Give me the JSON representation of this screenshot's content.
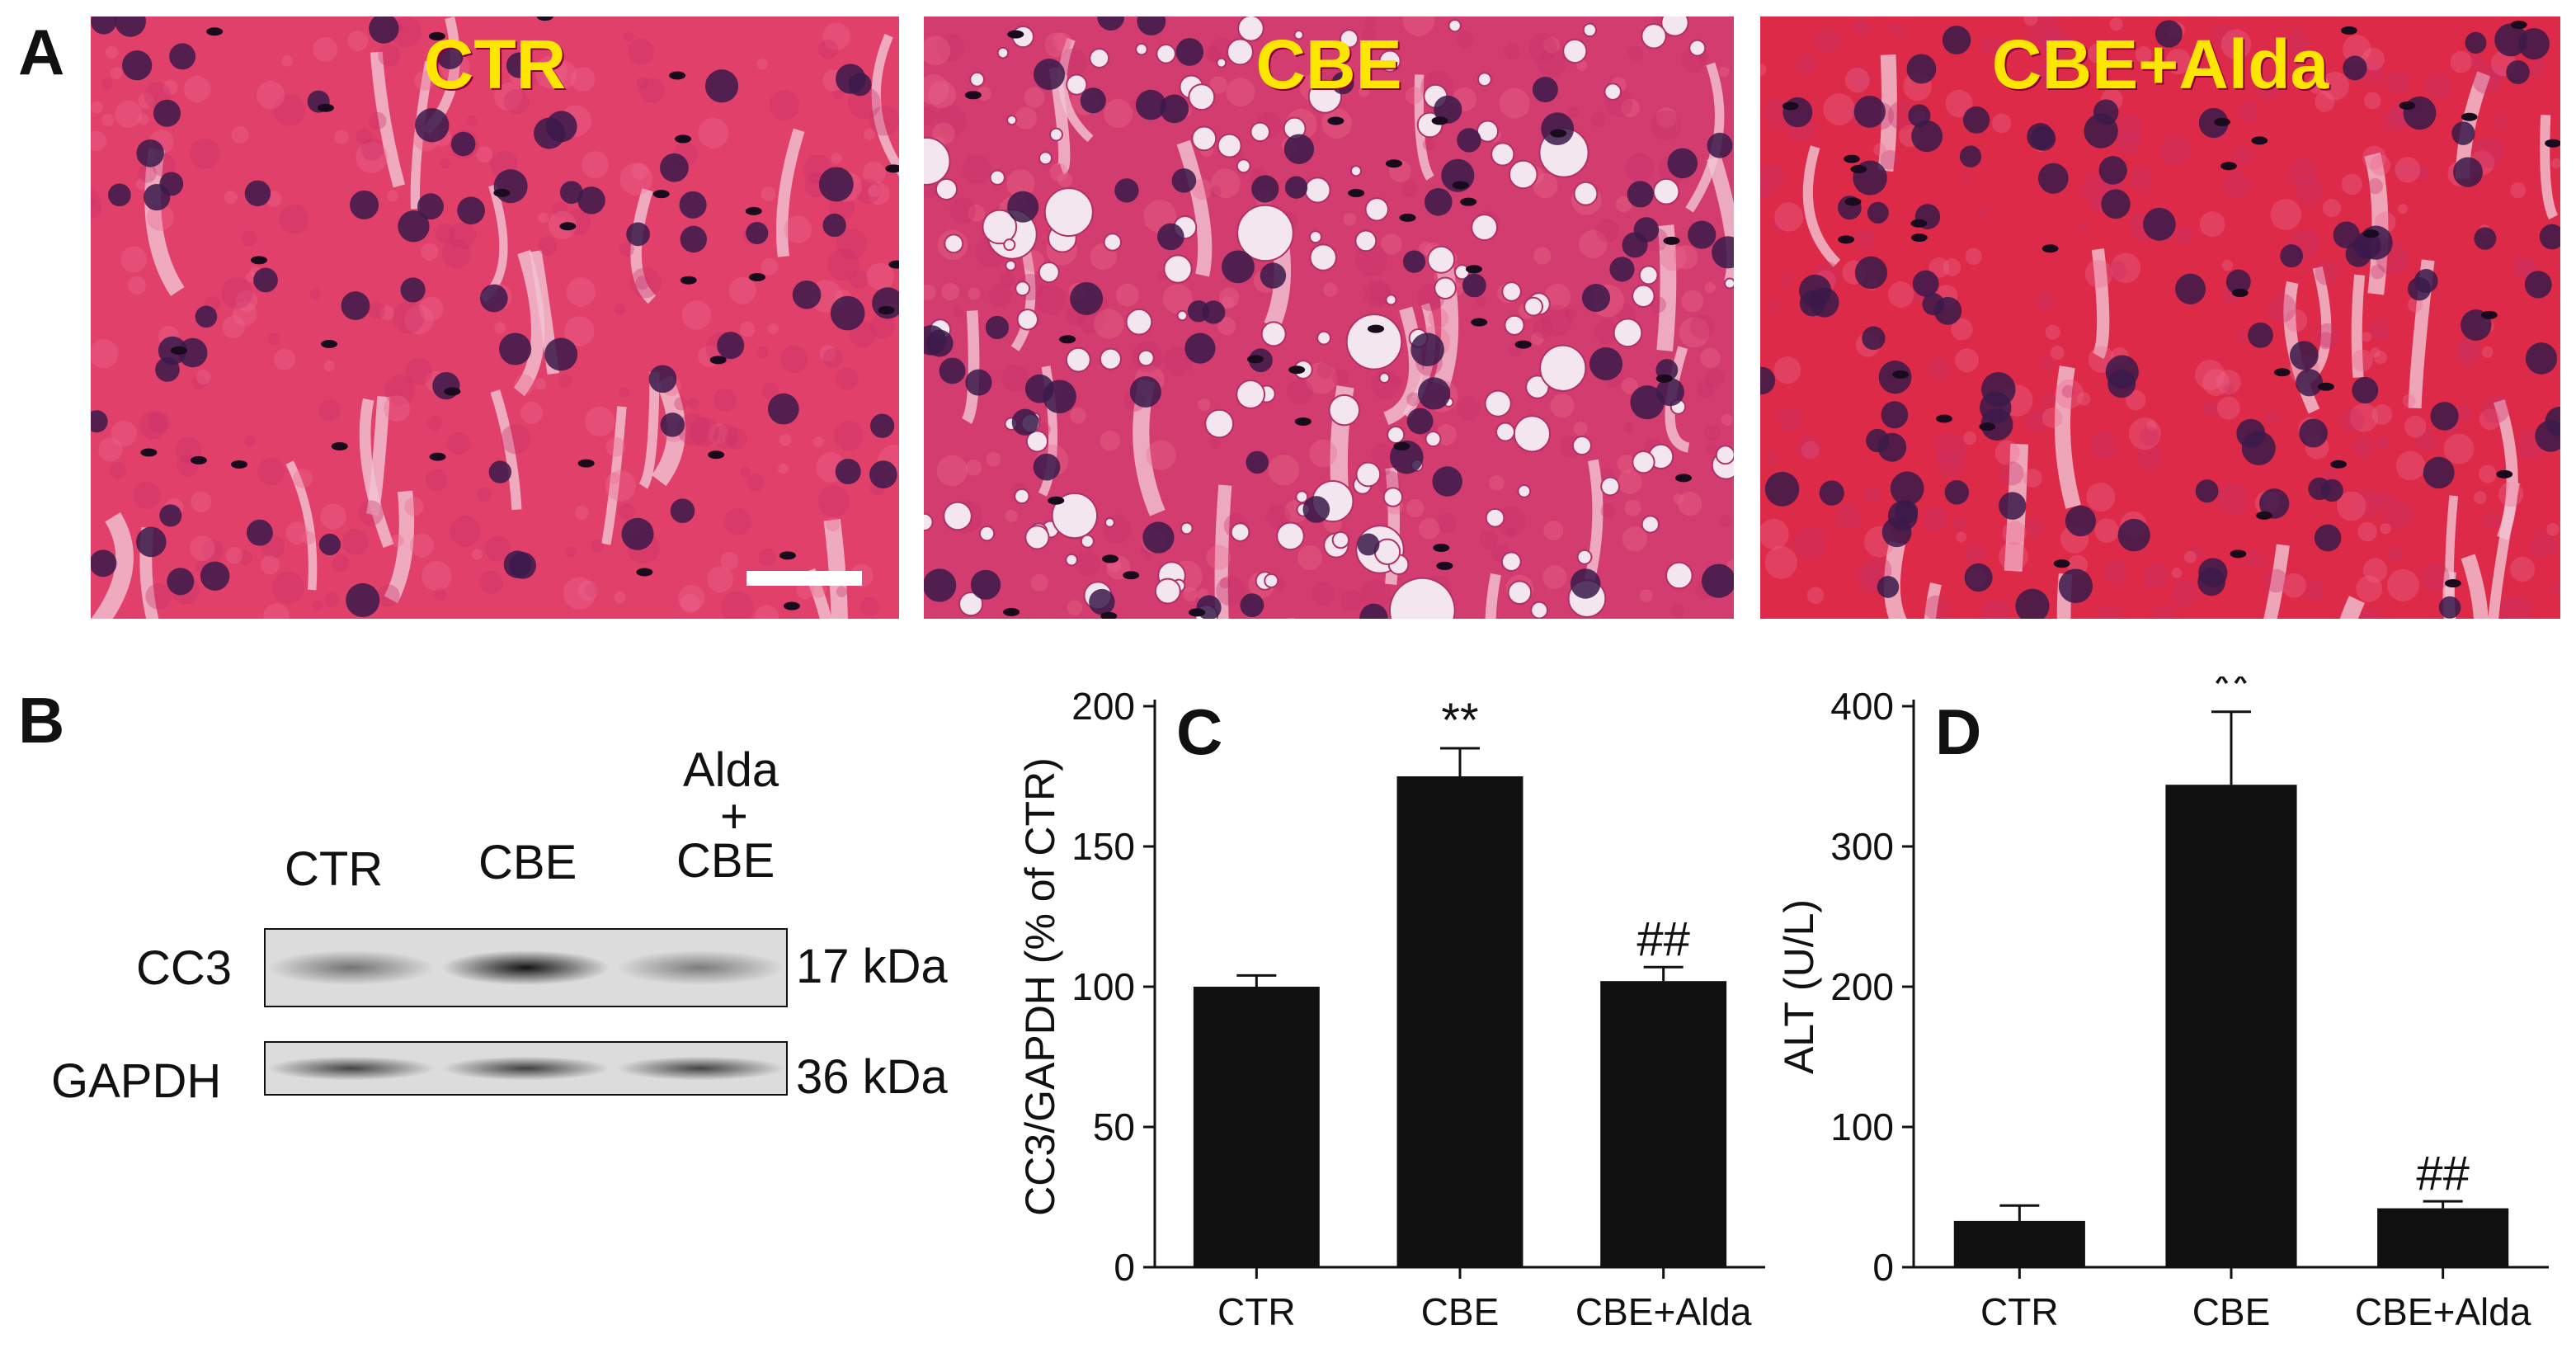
{
  "panel_a": {
    "letter": "A",
    "images": [
      {
        "label": "CTR",
        "tint": "#e0406a",
        "vacuoles": 0
      },
      {
        "label": "CBE",
        "tint": "#d23c6e",
        "vacuoles": 1
      },
      {
        "label": "CBE+Alda",
        "tint": "#dc2a48",
        "vacuoles": 0
      }
    ]
  },
  "panel_b": {
    "letter": "B",
    "lanes": [
      "CTR",
      "CBE"
    ],
    "lane3": {
      "line1": "Alda",
      "line2": "+",
      "line3": "CBE"
    },
    "rows": [
      {
        "protein": "CC3",
        "size": "17 kDa",
        "intensities": [
          0.45,
          0.95,
          0.4
        ]
      },
      {
        "protein": "GAPDH",
        "size": "36 kDa",
        "intensities": [
          0.7,
          0.72,
          0.7
        ]
      }
    ]
  },
  "chart_data": [
    {
      "letter": "C",
      "type": "bar",
      "categories": [
        "CTR",
        "CBE",
        "CBE+Alda"
      ],
      "values": [
        100,
        175,
        102
      ],
      "errors": [
        4,
        10,
        5
      ],
      "annotations": [
        "",
        "**",
        "##"
      ],
      "ylabel": "CC3/GAPDH (% of CTR)",
      "ylim": [
        0,
        200
      ],
      "yticks": [
        0,
        50,
        100,
        150,
        200
      ],
      "bar_color": "#111111"
    },
    {
      "letter": "D",
      "type": "bar",
      "categories": [
        "CTR",
        "CBE",
        "CBE+Alda"
      ],
      "values": [
        33,
        344,
        42
      ],
      "errors": [
        11,
        52,
        5
      ],
      "annotations": [
        "",
        "**",
        "##"
      ],
      "ylabel": "ALT (U/L)",
      "ylim": [
        0,
        400
      ],
      "yticks": [
        0,
        100,
        200,
        300,
        400
      ],
      "bar_color": "#111111"
    }
  ]
}
